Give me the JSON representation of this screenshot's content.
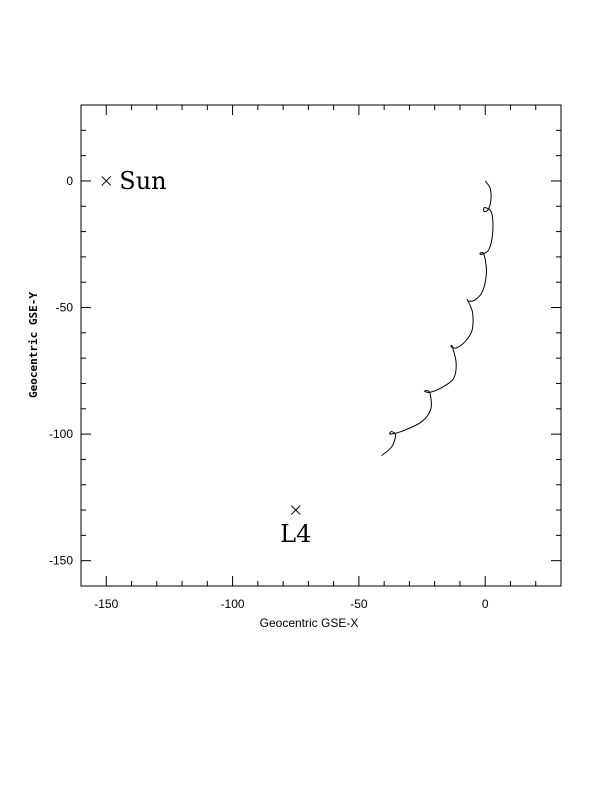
{
  "chart_data": {
    "type": "line",
    "title": "",
    "xlabel": "Geocentric GSE-X",
    "ylabel": "Geocentric GSE-Y",
    "xlim": [
      -160,
      30
    ],
    "ylim": [
      -160,
      30
    ],
    "x_ticks": [
      -150,
      -100,
      -50,
      0
    ],
    "y_ticks": [
      0,
      -50,
      -100,
      -150
    ],
    "grid": false,
    "legend": "none",
    "series": [
      {
        "x": [
          0.0,
          2.0,
          2.2,
          1.0,
          -0.5,
          -0.2,
          2.5,
          3.0,
          1.5,
          -1.5,
          -2.0,
          -0.5,
          0.5,
          -1.0,
          -4.0,
          -6.5,
          -7.0,
          -5.0,
          -5.2,
          -8.0,
          -11.5,
          -13.5,
          -13.0,
          -11.5,
          -12.5,
          -17.0,
          -22.0,
          -24.0,
          -22.0,
          -21.5,
          -25.0,
          -32.0,
          -37.5,
          -37.0,
          -35.5,
          -37.0,
          -41.0
        ],
        "y": [
          0.0,
          -3.0,
          -8.0,
          -11.5,
          -12.0,
          -10.5,
          -12.5,
          -20.0,
          -27.0,
          -29.0,
          -28.5,
          -29.0,
          -36.0,
          -43.5,
          -47.0,
          -47.5,
          -47.0,
          -52.0,
          -59.0,
          -63.5,
          -66.0,
          -65.5,
          -65.5,
          -72.0,
          -78.0,
          -81.5,
          -83.5,
          -83.0,
          -83.5,
          -90.0,
          -95.0,
          -98.5,
          -100.0,
          -99.0,
          -100.5,
          -105.0,
          -108.5
        ]
      }
    ],
    "points": [
      {
        "label": "Sun",
        "x": -150,
        "y": 0
      },
      {
        "label": "L4",
        "x": -75,
        "y": -130
      }
    ]
  }
}
